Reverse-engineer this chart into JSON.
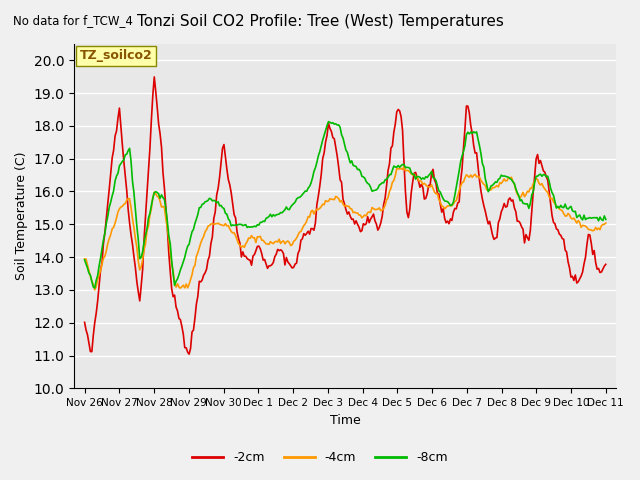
{
  "title": "Tonzi Soil CO2 Profile: Tree (West) Temperatures",
  "subtitle": "No data for f_TCW_4",
  "xlabel": "Time",
  "ylabel": "Soil Temperature (C)",
  "ylim": [
    10.0,
    20.5
  ],
  "yticks": [
    10.0,
    11.0,
    12.0,
    13.0,
    14.0,
    15.0,
    16.0,
    17.0,
    18.0,
    19.0,
    20.0
  ],
  "xtick_labels": [
    "Nov 26",
    "Nov 27",
    "Nov 28",
    "Nov 29",
    "Nov 30",
    "Dec 1",
    "Dec 2",
    "Dec 3",
    "Dec 4",
    "Dec 5",
    "Dec 6",
    "Dec 7",
    "Dec 8",
    "Dec 9",
    "Dec 10",
    "Dec 11"
  ],
  "legend_entries": [
    "-2cm",
    "-4cm",
    "-8cm"
  ],
  "legend_colors": [
    "#dd0000",
    "#ff9900",
    "#00bb00"
  ],
  "line_colors": [
    "#dd0000",
    "#ff9900",
    "#00bb00"
  ],
  "plot_bg_color": "#e8e8e8",
  "annotation_box_text": "TZ_soilco2",
  "annotation_box_color": "#ffffaa",
  "annotation_box_edge": "#888800",
  "n_points": 360,
  "line_width": 1.2
}
